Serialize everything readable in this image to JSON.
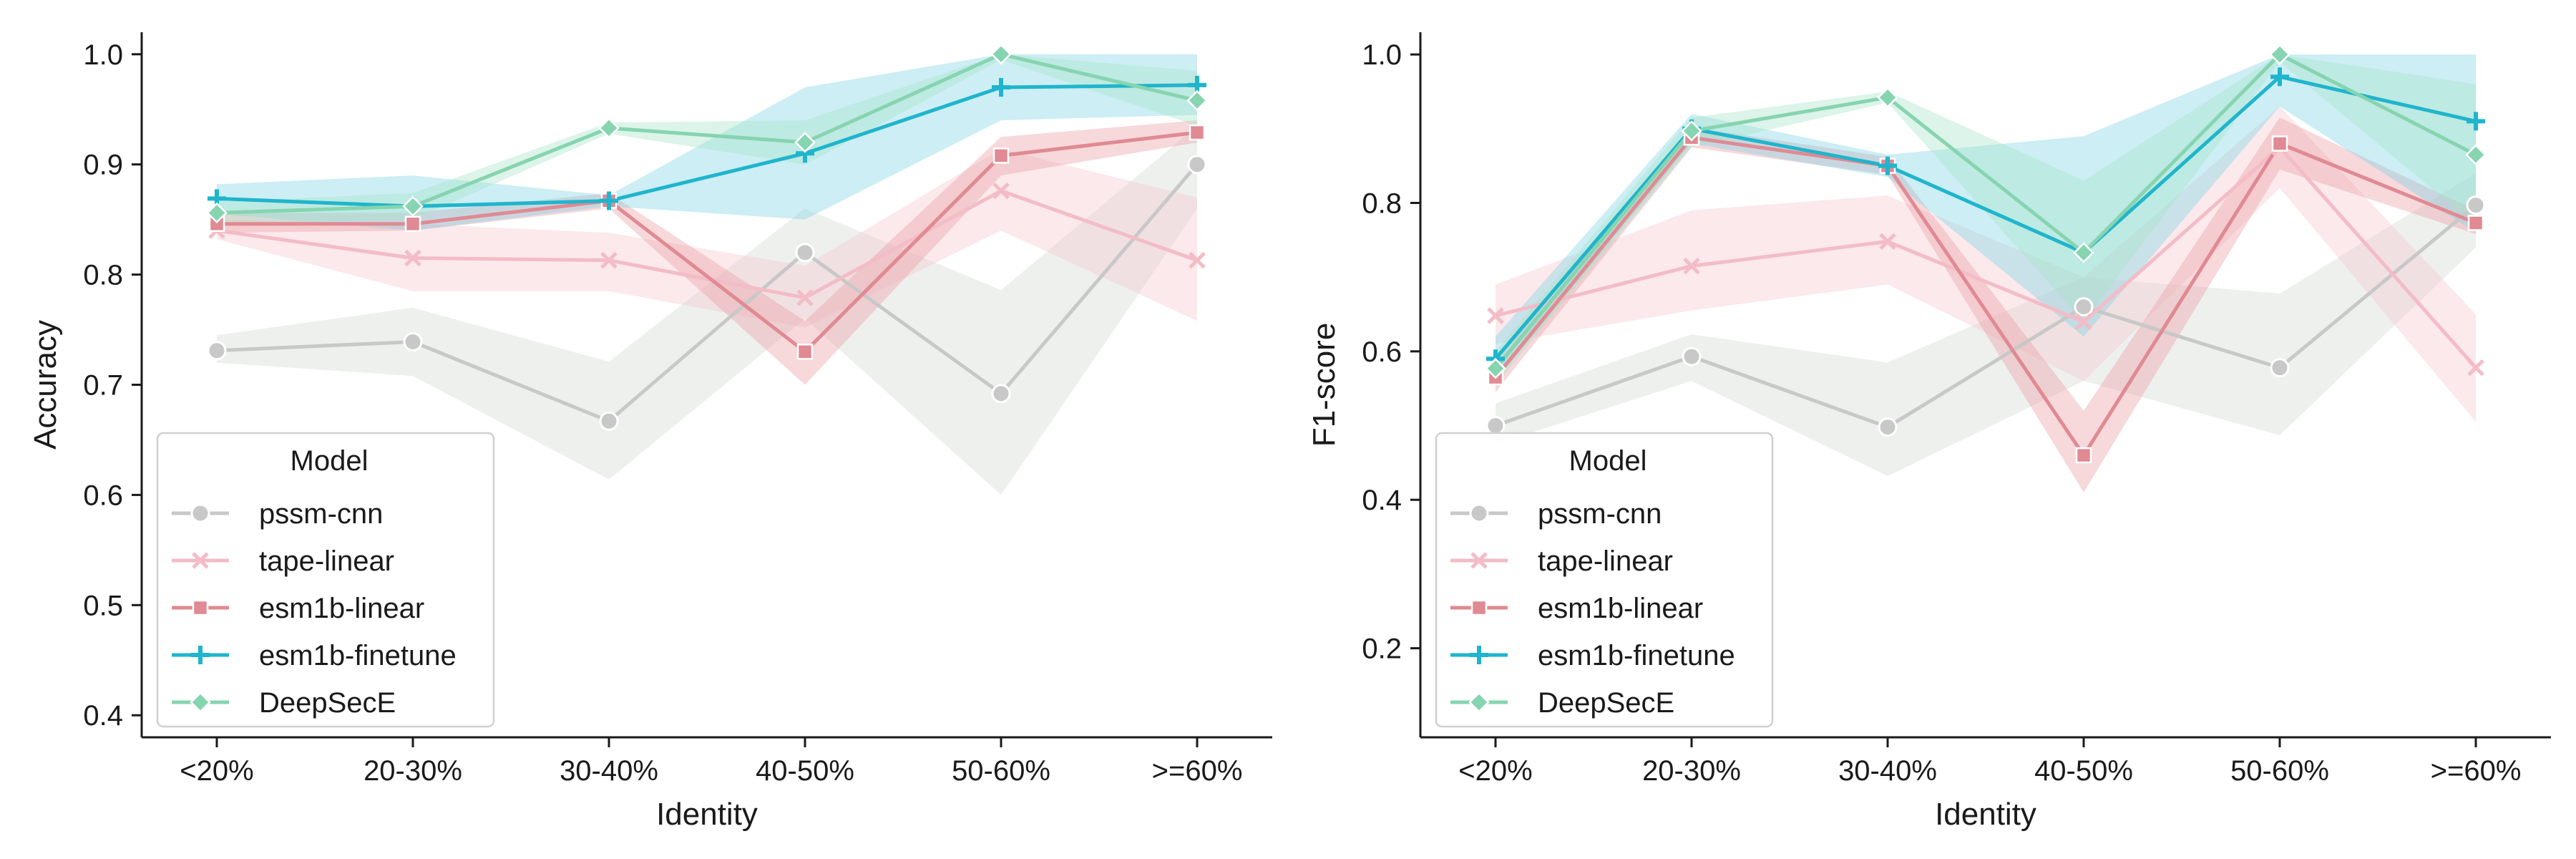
{
  "chart_data": [
    {
      "type": "line",
      "title": "",
      "xlabel": "Identity",
      "ylabel": "Accuracy",
      "categories": [
        "<20%",
        "20-30%",
        "30-40%",
        "40-50%",
        "50-60%",
        ">=60%"
      ],
      "ylim": [
        0.38,
        1.02
      ],
      "yticks": [
        0.4,
        0.5,
        0.6,
        0.7,
        0.8,
        0.9,
        1.0
      ],
      "ytick_labels": [
        "0.4",
        "0.5",
        "0.6",
        "0.7",
        "0.8",
        "0.9",
        "1.0"
      ],
      "grid": false,
      "legend": {
        "title": "Model",
        "position": "lower-left"
      },
      "series": [
        {
          "name": "pssm-cnn",
          "marker": "circle",
          "color": "#c8c8c8",
          "band_color": "#d5d9d5",
          "values": [
            0.731,
            0.739,
            0.667,
            0.82,
            0.692,
            0.9
          ],
          "lower": [
            0.72,
            0.708,
            0.614,
            0.76,
            0.6,
            0.86
          ],
          "upper": [
            0.745,
            0.77,
            0.721,
            0.86,
            0.786,
            0.935
          ]
        },
        {
          "name": "tape-linear",
          "marker": "x",
          "color": "#f3bcc6",
          "band_color": "#f6c8d0",
          "values": [
            0.84,
            0.815,
            0.813,
            0.779,
            0.876,
            0.813
          ],
          "lower": [
            0.832,
            0.785,
            0.785,
            0.752,
            0.84,
            0.758
          ],
          "upper": [
            0.85,
            0.846,
            0.838,
            0.808,
            0.914,
            0.87
          ]
        },
        {
          "name": "esm1b-linear",
          "marker": "square",
          "color": "#e08a93",
          "band_color": "#ec9ea6",
          "values": [
            0.846,
            0.846,
            0.867,
            0.73,
            0.908,
            0.929
          ],
          "lower": [
            0.838,
            0.84,
            0.86,
            0.7,
            0.89,
            0.92
          ],
          "upper": [
            0.856,
            0.856,
            0.874,
            0.758,
            0.925,
            0.94
          ]
        },
        {
          "name": "esm1b-finetune",
          "marker": "plus",
          "color": "#1fb5cc",
          "band_color": "#7fd4e4",
          "values": [
            0.869,
            0.862,
            0.867,
            0.91,
            0.97,
            0.972
          ],
          "lower": [
            0.855,
            0.84,
            0.862,
            0.85,
            0.94,
            0.945
          ],
          "upper": [
            0.882,
            0.89,
            0.872,
            0.97,
            1.0,
            1.0
          ]
        },
        {
          "name": "DeepSecE",
          "marker": "diamond",
          "color": "#86d4b0",
          "band_color": "#a8e3c7",
          "values": [
            0.856,
            0.862,
            0.933,
            0.92,
            1.0,
            0.958
          ],
          "lower": [
            0.846,
            0.85,
            0.928,
            0.9,
            0.995,
            0.935
          ],
          "upper": [
            0.866,
            0.874,
            0.938,
            0.94,
            1.0,
            0.985
          ]
        }
      ]
    },
    {
      "type": "line",
      "title": "",
      "xlabel": "Identity",
      "ylabel": "F1-score",
      "categories": [
        "<20%",
        "20-30%",
        "30-40%",
        "40-50%",
        "50-60%",
        ">=60%"
      ],
      "ylim": [
        0.08,
        1.03
      ],
      "yticks": [
        0.2,
        0.4,
        0.6,
        0.8,
        1.0
      ],
      "ytick_labels": [
        "0.2",
        "0.4",
        "0.6",
        "0.8",
        "1.0"
      ],
      "grid": false,
      "legend": {
        "title": "Model",
        "position": "lower-left"
      },
      "series": [
        {
          "name": "pssm-cnn",
          "marker": "circle",
          "color": "#c8c8c8",
          "band_color": "#d5d9d5",
          "values": [
            0.5,
            0.593,
            0.498,
            0.66,
            0.578,
            0.797
          ],
          "lower": [
            0.475,
            0.56,
            0.432,
            0.56,
            0.487,
            0.74
          ],
          "upper": [
            0.53,
            0.623,
            0.585,
            0.7,
            0.678,
            0.84
          ]
        },
        {
          "name": "tape-linear",
          "marker": "x",
          "color": "#f3bcc6",
          "band_color": "#f6c8d0",
          "values": [
            0.648,
            0.715,
            0.748,
            0.64,
            0.875,
            0.578
          ],
          "lower": [
            0.61,
            0.655,
            0.69,
            0.56,
            0.82,
            0.505
          ],
          "upper": [
            0.69,
            0.79,
            0.81,
            0.7,
            0.93,
            0.65
          ]
        },
        {
          "name": "esm1b-linear",
          "marker": "square",
          "color": "#e08a93",
          "band_color": "#ec9ea6",
          "values": [
            0.565,
            0.888,
            0.85,
            0.46,
            0.88,
            0.773
          ],
          "lower": [
            0.545,
            0.875,
            0.838,
            0.41,
            0.845,
            0.758
          ],
          "upper": [
            0.585,
            0.902,
            0.862,
            0.52,
            0.915,
            0.79
          ]
        },
        {
          "name": "esm1b-finetune",
          "marker": "plus",
          "color": "#1fb5cc",
          "band_color": "#7fd4e4",
          "values": [
            0.59,
            0.9,
            0.85,
            0.733,
            0.97,
            0.91
          ],
          "lower": [
            0.56,
            0.88,
            0.835,
            0.62,
            0.93,
            0.76
          ],
          "upper": [
            0.62,
            0.92,
            0.865,
            0.89,
            1.0,
            1.0
          ]
        },
        {
          "name": "DeepSecE",
          "marker": "diamond",
          "color": "#86d4b0",
          "band_color": "#a8e3c7",
          "values": [
            0.577,
            0.897,
            0.942,
            0.733,
            1.0,
            0.865
          ],
          "lower": [
            0.555,
            0.875,
            0.935,
            0.64,
            0.99,
            0.77
          ],
          "upper": [
            0.6,
            0.915,
            0.95,
            0.83,
            1.0,
            0.96
          ]
        }
      ]
    }
  ]
}
